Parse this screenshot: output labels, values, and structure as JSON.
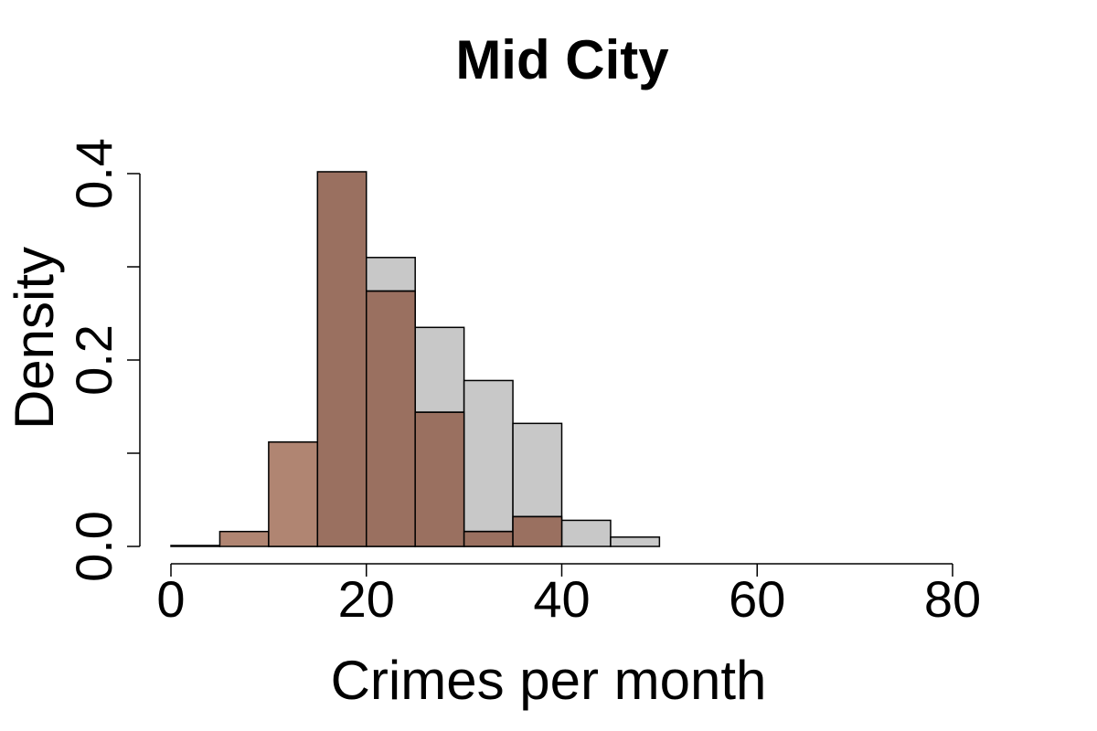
{
  "chart_data": {
    "type": "bar",
    "title": "Mid City",
    "xlabel": "Crimes per month",
    "ylabel": "Density",
    "xlim": [
      0,
      80
    ],
    "ylim": [
      0,
      0.4
    ],
    "x_ticks": [
      "0",
      "20",
      "40",
      "60",
      "80"
    ],
    "y_ticks": [
      "0.0",
      "0.2",
      "0.4"
    ],
    "y_minor_ticks": [
      0.1,
      0.3
    ],
    "bin_width": 5,
    "grid": false,
    "legend": "none",
    "series": [
      {
        "color": "#c8c8c8",
        "bins": [
          {
            "x0": 10,
            "x1": 15,
            "value": 0.01
          },
          {
            "x0": 15,
            "x1": 20,
            "value": 0.095
          },
          {
            "x0": 20,
            "x1": 25,
            "value": 0.31
          },
          {
            "x0": 25,
            "x1": 30,
            "value": 0.235
          },
          {
            "x0": 30,
            "x1": 35,
            "value": 0.178
          },
          {
            "x0": 35,
            "x1": 40,
            "value": 0.132
          },
          {
            "x0": 40,
            "x1": 45,
            "value": 0.028
          },
          {
            "x0": 45,
            "x1": 50,
            "value": 0.01
          }
        ]
      },
      {
        "color": "#9c6e5a",
        "color_overlay": "#9a7060",
        "color_solo": "#b08572",
        "bins": [
          {
            "x0": 0,
            "x1": 5,
            "value": 0.001
          },
          {
            "x0": 5,
            "x1": 10,
            "value": 0.016
          },
          {
            "x0": 10,
            "x1": 15,
            "value": 0.112
          },
          {
            "x0": 15,
            "x1": 20,
            "value": 0.402
          },
          {
            "x0": 20,
            "x1": 25,
            "value": 0.274
          },
          {
            "x0": 25,
            "x1": 30,
            "value": 0.144
          },
          {
            "x0": 30,
            "x1": 35,
            "value": 0.016
          },
          {
            "x0": 35,
            "x1": 40,
            "value": 0.032
          }
        ]
      }
    ]
  }
}
